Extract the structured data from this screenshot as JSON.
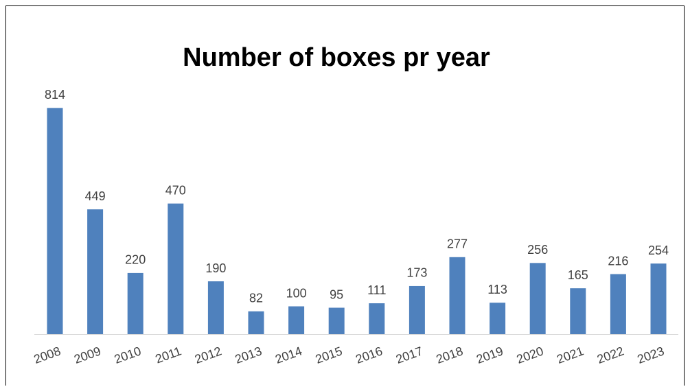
{
  "chart_data": {
    "type": "bar",
    "title": "Number of boxes pr year",
    "categories": [
      "2008",
      "2009",
      "2010",
      "2011",
      "2012",
      "2013",
      "2014",
      "2015",
      "2016",
      "2017",
      "2018",
      "2019",
      "2020",
      "2021",
      "2022",
      "2023"
    ],
    "values": [
      814,
      449,
      220,
      470,
      190,
      82,
      100,
      95,
      111,
      173,
      277,
      113,
      256,
      165,
      216,
      254
    ],
    "color": "#4f81bd"
  }
}
